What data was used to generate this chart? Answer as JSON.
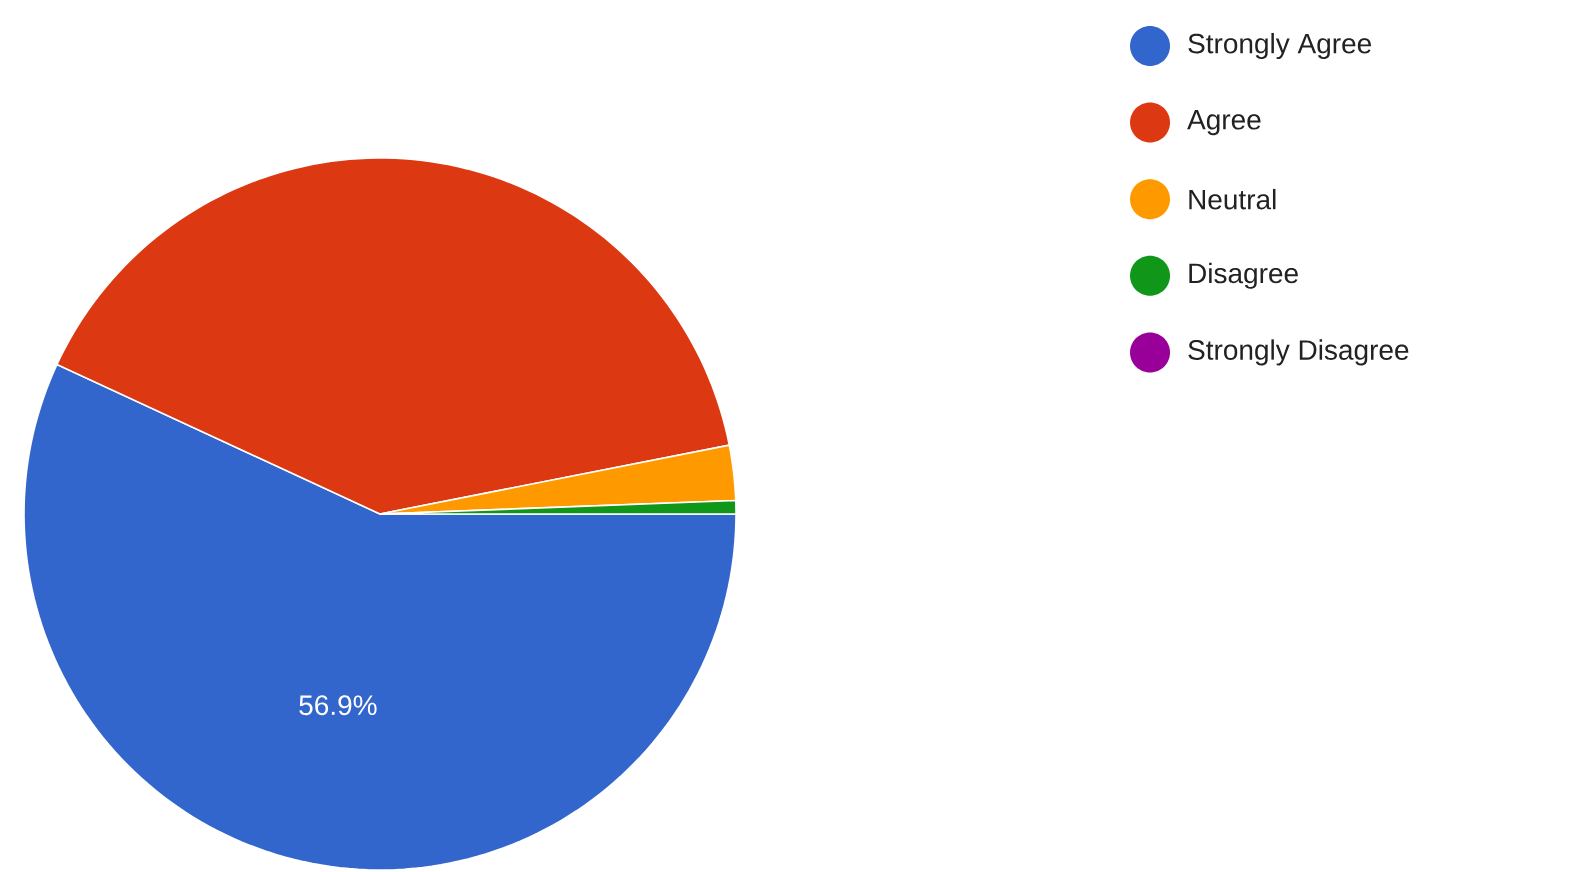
{
  "chart_data": {
    "type": "pie",
    "categories": [
      "Strongly Agree",
      "Agree",
      "Neutral",
      "Disagree",
      "Strongly Disagree"
    ],
    "values": [
      56.9,
      40.0,
      2.5,
      0.6,
      0
    ],
    "colors": [
      "#3366cc",
      "#dc3912",
      "#ff9900",
      "#109618",
      "#990099"
    ],
    "value_labels": [
      "56.9%",
      null,
      null,
      null,
      null
    ],
    "legend": "right"
  }
}
